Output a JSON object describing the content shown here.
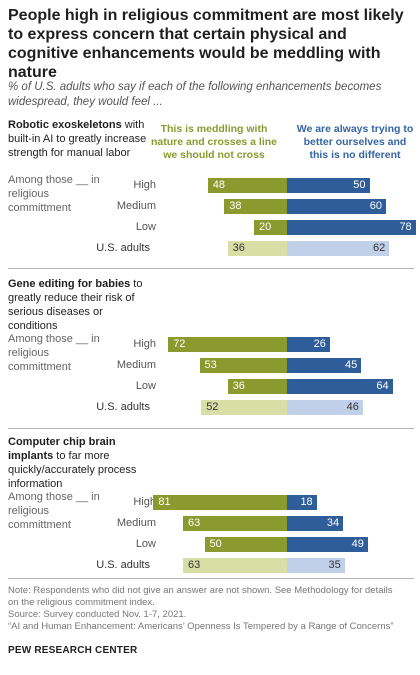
{
  "title": "People high in religious commitment are most likely to express concern that certain physical and cognitive enhancements would be meddling with nature",
  "subtitle": "% of U.S. adults who say if each of the following enhancements becomes widespread, they would feel ...",
  "legend": {
    "left": "This is meddling with nature and crosses a line we should not cross",
    "right": "We are always trying to better ourselves and this is no different"
  },
  "among_label": "Among those __ in religious committment",
  "colors": {
    "meddling": "#8a9a2e",
    "meddling_total": "#d7dfa6",
    "better": "#2f5d9a",
    "better_total": "#bfd0e8"
  },
  "chart_data": [
    {
      "type": "bar",
      "title_bold": "Robotic exoskeletons",
      "title_rest": " with built-in AI to greatly increase strength for manual labor",
      "categories": [
        "High",
        "Medium",
        "Low",
        "U.S. adults"
      ],
      "series": [
        {
          "name": "This is meddling with nature and crosses a line we should not cross",
          "values": [
            48,
            38,
            20,
            36
          ]
        },
        {
          "name": "We are always trying to better ourselves and this is no different",
          "values": [
            50,
            60,
            78,
            62
          ]
        }
      ]
    },
    {
      "type": "bar",
      "title_bold": "Gene editing for babies",
      "title_rest": " to greatly reduce their risk of serious diseases or conditions",
      "categories": [
        "High",
        "Medium",
        "Low",
        "U.S. adults"
      ],
      "series": [
        {
          "name": "This is meddling with nature and crosses a line we should not cross",
          "values": [
            72,
            53,
            36,
            52
          ]
        },
        {
          "name": "We are always trying to better ourselves and this is no different",
          "values": [
            26,
            45,
            64,
            46
          ]
        }
      ]
    },
    {
      "type": "bar",
      "title_bold": "Computer chip brain implants",
      "title_rest": " to far more quickly/accurately process information",
      "categories": [
        "High",
        "Medium",
        "Low",
        "U.S. adults"
      ],
      "series": [
        {
          "name": "This is meddling with nature and crosses a line we should not cross",
          "values": [
            81,
            63,
            50,
            63
          ]
        },
        {
          "name": "We are always trying to better ourselves and this is no different",
          "values": [
            18,
            34,
            49,
            35
          ]
        }
      ]
    }
  ],
  "notes": [
    "Note: Respondents who did not give an answer are not shown. See Methodology for details",
    "on the religious commitment index.",
    "Source: Survey conducted Nov. 1-7, 2021.",
    "“AI and Human Enhancement: Americans’ Openness Is Tempered by a Range of Concerns”"
  ],
  "brand": "PEW RESEARCH CENTER"
}
